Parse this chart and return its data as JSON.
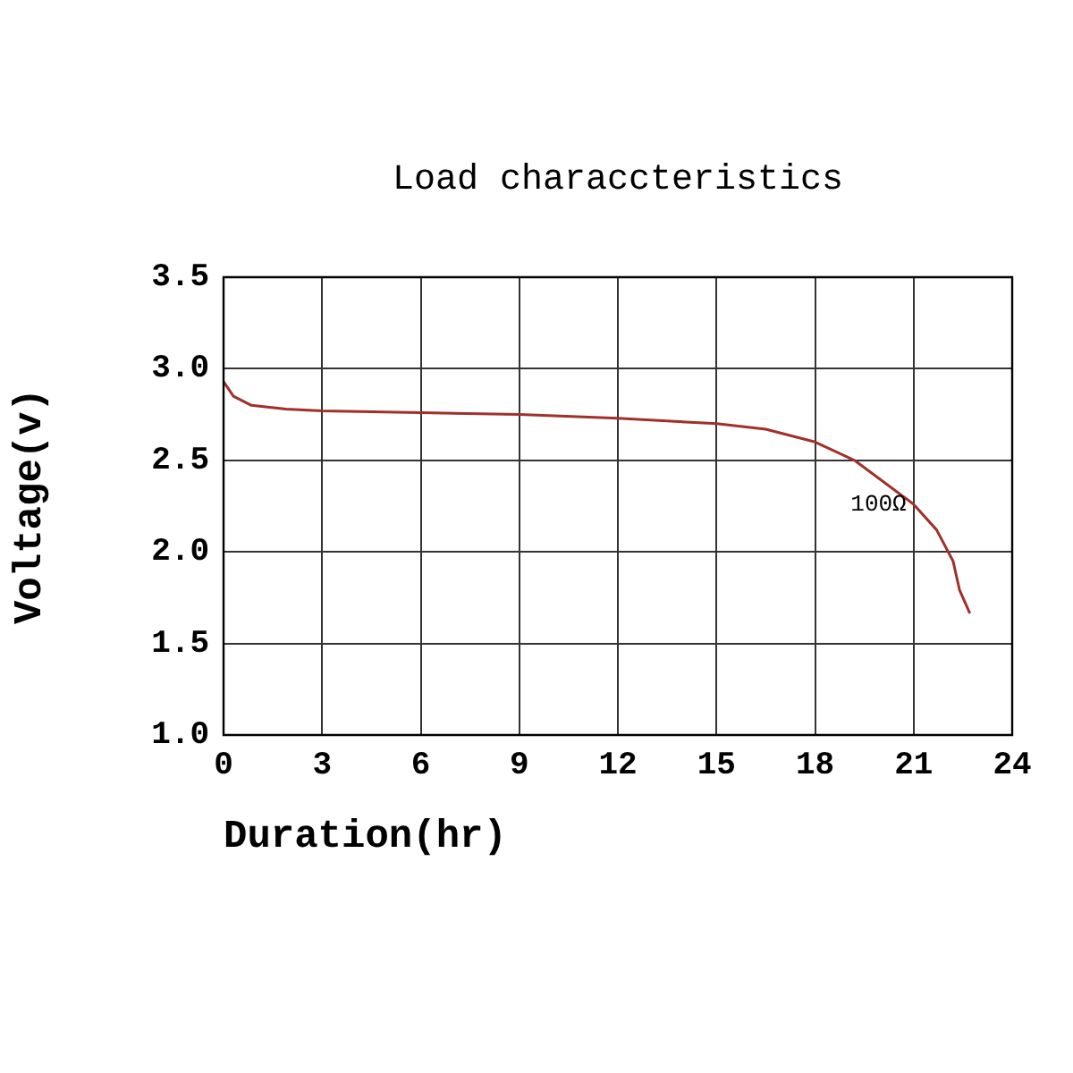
{
  "chart_data": {
    "type": "line",
    "title": "Load characcteristics",
    "xlabel": "Duration(hr)",
    "ylabel": "Voltage(v)",
    "xlim": [
      0,
      24
    ],
    "xticks": [
      0,
      3,
      6,
      9,
      12,
      15,
      18,
      21,
      24
    ],
    "ylim": [
      1.0,
      3.5
    ],
    "yticks": [
      {
        "value": 1.0,
        "label": "1.0"
      },
      {
        "value": 1.5,
        "label": "1.5"
      },
      {
        "value": 2.0,
        "label": "2.0"
      },
      {
        "value": 2.5,
        "label": "2.5"
      },
      {
        "value": 3.0,
        "label": "3.0"
      },
      {
        "value": 3.5,
        "label": "3.5"
      }
    ],
    "grid": true,
    "legend": false,
    "marker": "none",
    "line_style": "solid",
    "series": [
      {
        "name": "100Ω",
        "color": "#a0302a",
        "x": [
          0,
          0.3,
          0.85,
          1.9,
          3,
          6,
          9,
          12,
          15,
          16.5,
          18,
          19.2,
          21,
          21.7,
          22.2,
          22.4,
          22.7
        ],
        "values": [
          2.93,
          2.85,
          2.8,
          2.78,
          2.77,
          2.76,
          2.75,
          2.73,
          2.7,
          2.67,
          2.6,
          2.5,
          2.26,
          2.12,
          1.95,
          1.79,
          1.67
        ]
      }
    ]
  }
}
